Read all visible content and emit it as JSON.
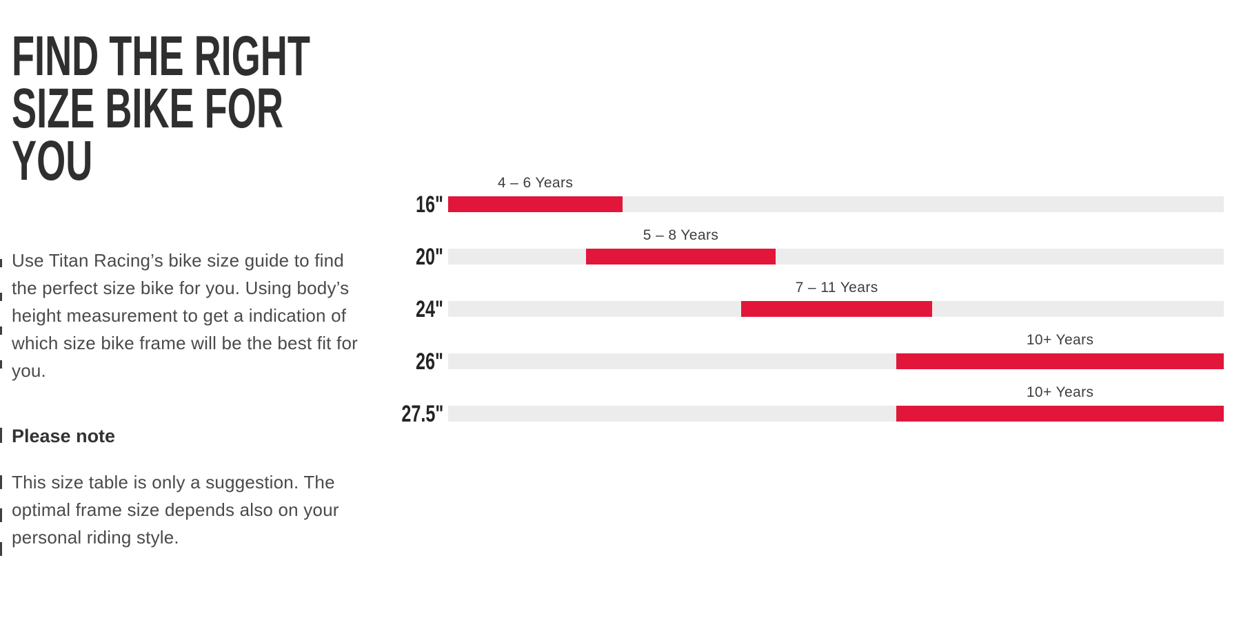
{
  "page": {
    "background": "#ffffff"
  },
  "colors": {
    "accent_red": "#e1163a",
    "track_gray": "#ececec",
    "heading_text": "#2f2f2f",
    "body_text": "#4a4a4a"
  },
  "intro": {
    "title_line1": "FIND THE RIGHT",
    "title_line2": "SIZE BIKE FOR",
    "title_line3": "YOU",
    "description": "Use Titan Racing’s bike size guide to find the perfect size bike for you. Using body’s height measurement to get a indication of which size bike frame will be the best fit for you.",
    "note_heading": "Please note",
    "note_body": "This size table is only a suggestion. The optimal frame size depends also on your personal riding style."
  },
  "chart_data": {
    "type": "bar",
    "orientation": "horizontal",
    "title": "",
    "xlabel": "",
    "ylabel": "",
    "grid": false,
    "legend": null,
    "categories": [
      "16\"",
      "20\"",
      "24\"",
      "26\"",
      "27.5\""
    ],
    "rows": [
      {
        "wheel_size": "16\"",
        "age_label": "4 – 6 Years",
        "age_min": 4,
        "age_max": 6,
        "range_start_pct": 0,
        "range_end_pct": 22.5
      },
      {
        "wheel_size": "20\"",
        "age_label": "5 – 8 Years",
        "age_min": 5,
        "age_max": 8,
        "range_start_pct": 17.8,
        "range_end_pct": 42.2
      },
      {
        "wheel_size": "24\"",
        "age_label": "7 – 11 Years",
        "age_min": 7,
        "age_max": 11,
        "range_start_pct": 37.8,
        "range_end_pct": 62.4
      },
      {
        "wheel_size": "26\"",
        "age_label": "10+ Years",
        "age_min": 10,
        "age_max": null,
        "range_start_pct": 57.8,
        "range_end_pct": 100
      },
      {
        "wheel_size": "27.5\"",
        "age_label": "10+ Years",
        "age_min": 10,
        "age_max": null,
        "range_start_pct": 57.8,
        "range_end_pct": 100
      }
    ],
    "bar_color": "#e1163a",
    "track_color": "#ececec"
  }
}
